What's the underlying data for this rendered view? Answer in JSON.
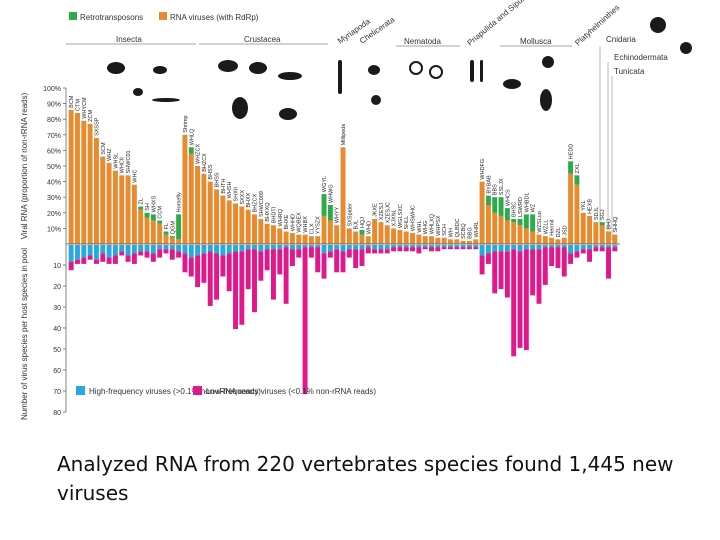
{
  "caption": "Analyzed RNA from 220 vertebrates species found 1,445 new viruses",
  "colors": {
    "retrotransposons": "#2eaa4b",
    "rna_viruses": "#e88a2e",
    "high_frequency": "#29a8df",
    "low_frequency": "#e0188c",
    "axis": "#444444"
  },
  "chart_data": [
    {
      "type": "bar",
      "ylabel": "Viral RNA (proportion of non-rRNA reads)",
      "ylim": [
        0,
        100
      ],
      "yticks": [
        "10%",
        "20%",
        "30%",
        "40%",
        "50%",
        "60%",
        "70%",
        "80%",
        "90%",
        "100%"
      ],
      "legend": [
        "Retrotransposons",
        "RNA viruses (with RdRp)"
      ],
      "groups": [
        "Insecta",
        "Crustacea",
        "Myriapoda",
        "Chelicerata",
        "Nematoda",
        "Priapulida and Sipuncula",
        "Mollusca",
        "Platyhelminthes",
        "Cnidaria",
        "Echinodermata",
        "Tunicata"
      ],
      "sample_labels": [
        "BCM",
        "CTM",
        "WHYCM",
        "ZCM",
        "SXSSP",
        "SCM",
        "WHZ",
        "WHSL",
        "WHCII",
        "SHWC01",
        "WHC",
        "ZL",
        "SH",
        "WHXS",
        "CCM",
        "FL",
        "QGM",
        "Horsefly",
        "Shrimp",
        "WHLQ",
        "WHZCX",
        "BHZCX",
        "BHSS",
        "BHSS",
        "BHTH",
        "WHSH",
        "SHXII",
        "SXXX",
        "BHXX",
        "BHZCX",
        "SHWC009",
        "BHXXQ",
        "BHDTI",
        "WHRQ",
        "BHXE",
        "WHHD",
        "WQBEX",
        "WHBX",
        "CLX",
        "YYSZX",
        "WGYL",
        "WHWG",
        "WHYY",
        "Millipede",
        "SXSpider",
        "BJL",
        "HQJ",
        "WHD",
        "JKXE",
        "XZESJ",
        "XZESJC",
        "XJXNL",
        "WGLSXC",
        "SHLL",
        "WHSWHC",
        "WHL",
        "WHG",
        "WHLXQ",
        "WHPSX",
        "SCH",
        "WH",
        "QLBDC",
        "SCBQ",
        "BBG",
        "WHRL",
        "WHDFG",
        "BYBAB",
        "BBS",
        "SSLJX",
        "WHCS",
        "BHSC",
        "LSWRD",
        "WHBDL",
        "WZ",
        "WZSLuo",
        "WZLL",
        "Hermit",
        "DZL",
        "JSD",
        "HEDD",
        "ZXL",
        "YKL",
        "HEXB",
        "SDJL",
        "SGJ",
        "BHJ",
        "SHHQ"
      ],
      "rna_virus_values": [
        86,
        84,
        79,
        77,
        68,
        56,
        52,
        47,
        44,
        44,
        38,
        22,
        17,
        15,
        13,
        6,
        4,
        3,
        70,
        58,
        50,
        45,
        40,
        35,
        31,
        28,
        26,
        24,
        22,
        19,
        16,
        13,
        12,
        10,
        8,
        7,
        6,
        6,
        5,
        5,
        18,
        15,
        12,
        62,
        10,
        8,
        6,
        5,
        16,
        14,
        12,
        10,
        9,
        8,
        7,
        6,
        5,
        5,
        4,
        4,
        3,
        3,
        2,
        2,
        3,
        40,
        25,
        20,
        18,
        15,
        14,
        12,
        10,
        8,
        6,
        5,
        4,
        3,
        4,
        45,
        38,
        20,
        18,
        14,
        12,
        8,
        6
      ],
      "retrotransposon_values": [
        0,
        0,
        0,
        0,
        0,
        0,
        0,
        0,
        0,
        0,
        0,
        2,
        3,
        4,
        2,
        2,
        1,
        16,
        0,
        4,
        0,
        0,
        0,
        0,
        0,
        0,
        0,
        0,
        0,
        0,
        0,
        0,
        0,
        0,
        0,
        0,
        0,
        0,
        0,
        0,
        14,
        10,
        0,
        0,
        0,
        0,
        3,
        0,
        0,
        0,
        0,
        0,
        0,
        0,
        0,
        0,
        0,
        0,
        0,
        0,
        0,
        0,
        0,
        0,
        0,
        0,
        6,
        10,
        12,
        8,
        2,
        4,
        9,
        11,
        0,
        0,
        0,
        0,
        0,
        8,
        6,
        0,
        0,
        0,
        2,
        0,
        0
      ]
    },
    {
      "type": "bar",
      "ylabel": "Number of virus species per host species in pool",
      "ylim": [
        0,
        80
      ],
      "yticks": [
        "10",
        "20",
        "30",
        "40",
        "50",
        "60",
        "70",
        "80"
      ],
      "legend": [
        "High-frequency viruses (>0.1% non-rRNA reads)",
        "Low-frequency viruses (<0.1% non-rRNA reads)"
      ],
      "high_frequency_values": [
        8,
        7,
        6,
        5,
        7,
        4,
        6,
        5,
        3,
        5,
        4,
        3,
        3,
        4,
        2,
        2,
        2,
        3,
        4,
        6,
        5,
        4,
        3,
        4,
        5,
        4,
        3,
        3,
        2,
        2,
        3,
        2,
        2,
        2,
        1,
        2,
        2,
        1,
        1,
        1,
        4,
        3,
        2,
        3,
        2,
        2,
        2,
        1,
        2,
        2,
        2,
        1,
        1,
        1,
        1,
        1,
        1,
        1,
        1,
        1,
        1,
        1,
        1,
        1,
        1,
        5,
        4,
        3,
        3,
        3,
        2,
        3,
        2,
        2,
        2,
        1,
        1,
        1,
        1,
        4,
        3,
        2,
        2,
        1,
        1,
        1,
        1
      ],
      "low_frequency_values": [
        4,
        2,
        3,
        2,
        2,
        4,
        3,
        4,
        2,
        3,
        5,
        2,
        3,
        4,
        4,
        2,
        5,
        3,
        9,
        9,
        15,
        14,
        26,
        22,
        10,
        18,
        37,
        35,
        19,
        30,
        14,
        10,
        24,
        12,
        27,
        8,
        4,
        70,
        5,
        12,
        12,
        3,
        11,
        10,
        4,
        9,
        8,
        3,
        2,
        2,
        2,
        2,
        2,
        2,
        2,
        3,
        1,
        2,
        2,
        1,
        1,
        1,
        1,
        1,
        1,
        9,
        5,
        20,
        18,
        22,
        51,
        46,
        48,
        22,
        26,
        18,
        9,
        10,
        14,
        5,
        3,
        2,
        6,
        2,
        2,
        15,
        2
      ],
      "groups": [
        "Insecta",
        "Crustacea",
        "Myriapoda",
        "Chelicerata",
        "Nematoda",
        "Priapulida and Sipuncula",
        "Mollusca",
        "Platyhelminthes",
        "Cnidaria",
        "Echinodermata",
        "Tunicata"
      ]
    }
  ]
}
